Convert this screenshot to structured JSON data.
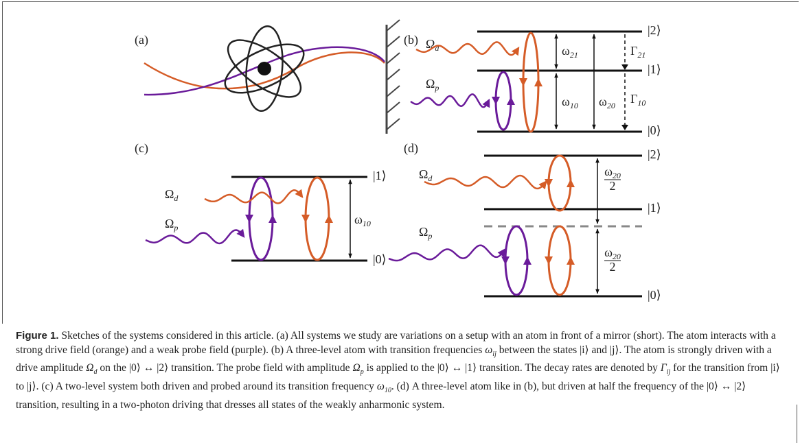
{
  "panels": {
    "a": {
      "label": "(a)"
    },
    "b": {
      "label": "(b)",
      "drive": {
        "base": "Ω",
        "sub": "d"
      },
      "probe": {
        "base": "Ω",
        "sub": "p"
      },
      "states": [
        "|0⟩",
        "|1⟩",
        "|2⟩"
      ],
      "omega21": {
        "base": "ω",
        "sub": "21"
      },
      "omega10": {
        "base": "ω",
        "sub": "10"
      },
      "omega20": {
        "base": "ω",
        "sub": "20"
      },
      "gamma21": {
        "base": "Γ",
        "sub": "21"
      },
      "gamma10": {
        "base": "Γ",
        "sub": "10"
      }
    },
    "c": {
      "label": "(c)",
      "drive": {
        "base": "Ω",
        "sub": "d"
      },
      "probe": {
        "base": "Ω",
        "sub": "p"
      },
      "states": [
        "|0⟩",
        "|1⟩"
      ],
      "omega10": {
        "base": "ω",
        "sub": "10"
      }
    },
    "d": {
      "label": "(d)",
      "drive": {
        "base": "Ω",
        "sub": "d"
      },
      "probe": {
        "base": "Ω",
        "sub": "p"
      },
      "states": [
        "|0⟩",
        "|1⟩",
        "|2⟩"
      ],
      "half": [
        {
          "num": {
            "base": "ω",
            "sub": "20"
          },
          "den": "2"
        },
        {
          "num": {
            "base": "ω",
            "sub": "20"
          },
          "den": "2"
        }
      ]
    }
  },
  "caption": {
    "label": "Figure 1.",
    "segments": [
      " Sketches of the systems considered in this article. (a) All systems we study are variations on a setup with an atom in front of a mirror (short). The atom interacts with a strong drive field (orange) and a weak probe field (purple). (b) A three-level atom with transition frequencies ",
      {
        "base": "ω",
        "sub": "ij"
      },
      " between the states |i⟩ and |j⟩. The atom is strongly driven with a drive amplitude ",
      {
        "base": "Ω",
        "sub": "d"
      },
      " on the |0⟩ ↔ |2⟩ transition. The probe field with amplitude ",
      {
        "base": "Ω",
        "sub": "p"
      },
      " is applied to the |0⟩ ↔ |1⟩ transition. The decay rates are denoted by ",
      {
        "base": "Γ",
        "sub": "ij"
      },
      " for the transition from |i⟩ to |j⟩. (c) A two-level system both driven and probed around its transition frequency ",
      {
        "base": "ω",
        "sub": "10"
      },
      ". (d) A three-level atom like in (b), but driven at half the frequency of the |0⟩ ↔ |2⟩ transition, resulting in a two-photon driving that dresses all states of the weakly anharmonic system."
    ]
  }
}
